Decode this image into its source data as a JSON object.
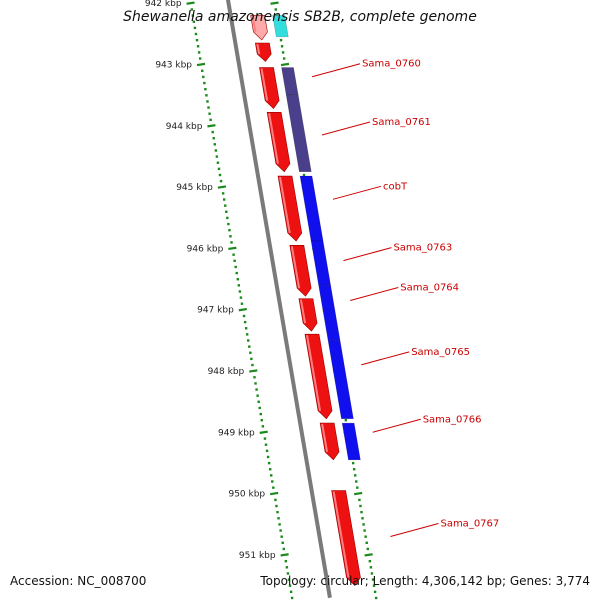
{
  "header": {
    "title": "Shewanella amazonensis SB2B, complete genome"
  },
  "footer": {
    "accession": "Accession: NC_008700",
    "topology": "Topology: circular; Length: 4,306,142 bp; Genes: 3,774"
  },
  "colors": {
    "backbone": "#7a7a7a",
    "ruler": "#1a8a1a",
    "gene": "#ee1111",
    "gene_highlight": "#ffaaaa",
    "cds": "#1010ee",
    "cds_dark": "#4a3f8a",
    "cds_light": "#33dddd",
    "label": "#cc0000"
  },
  "ticks": [
    {
      "kbp": 942,
      "label": "942 kbp"
    },
    {
      "kbp": 943,
      "label": "943 kbp"
    },
    {
      "kbp": 944,
      "label": "944 kbp"
    },
    {
      "kbp": 945,
      "label": "945 kbp"
    },
    {
      "kbp": 946,
      "label": "946 kbp"
    },
    {
      "kbp": 947,
      "label": "947 kbp"
    },
    {
      "kbp": 948,
      "label": "948 kbp"
    },
    {
      "kbp": 949,
      "label": "949 kbp"
    },
    {
      "kbp": 950,
      "label": "950 kbp"
    },
    {
      "kbp": 951,
      "label": "951 kbp"
    }
  ],
  "genes": [
    {
      "start": 942.2,
      "end": 942.6,
      "color": "gene_highlight"
    },
    {
      "start": 942.65,
      "end": 942.95,
      "color": "gene"
    },
    {
      "start": 943.05,
      "end": 943.72,
      "color": "gene"
    },
    {
      "start": 943.78,
      "end": 944.75,
      "color": "gene"
    },
    {
      "start": 944.82,
      "end": 945.88,
      "color": "gene"
    },
    {
      "start": 945.95,
      "end": 946.78,
      "color": "gene"
    },
    {
      "start": 946.82,
      "end": 947.35,
      "color": "gene"
    },
    {
      "start": 947.4,
      "end": 948.78,
      "color": "gene"
    },
    {
      "start": 948.85,
      "end": 949.45,
      "color": "gene"
    },
    {
      "start": 949.95,
      "end": 951.5,
      "color": "gene"
    }
  ],
  "cds": [
    {
      "start": 942.2,
      "end": 942.55,
      "color": "cds_light"
    },
    {
      "start": 943.05,
      "end": 943.5,
      "color": "cds_dark"
    },
    {
      "start": 943.5,
      "end": 944.75,
      "color": "cds_dark"
    },
    {
      "start": 944.82,
      "end": 945.88,
      "color": "cds"
    },
    {
      "start": 945.88,
      "end": 946.6,
      "color": "cds"
    },
    {
      "start": 946.6,
      "end": 947.5,
      "color": "cds"
    },
    {
      "start": 947.5,
      "end": 948.78,
      "color": "cds"
    },
    {
      "start": 948.85,
      "end": 949.45,
      "color": "cds"
    }
  ],
  "gene_labels": [
    {
      "name": "Sama_0760",
      "kbp": 943.2
    },
    {
      "name": "Sama_0761",
      "kbp": 944.15
    },
    {
      "name": "cobT",
      "kbp": 945.2
    },
    {
      "name": "Sama_0763",
      "kbp": 946.2
    },
    {
      "name": "Sama_0764",
      "kbp": 946.85
    },
    {
      "name": "Sama_0765",
      "kbp": 947.9
    },
    {
      "name": "Sama_0766",
      "kbp": 949.0
    },
    {
      "name": "Sama_0767",
      "kbp": 950.7
    }
  ]
}
